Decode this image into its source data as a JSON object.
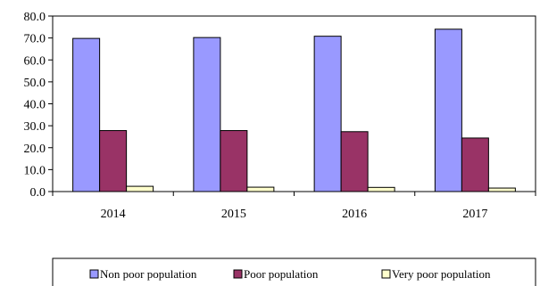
{
  "chart_data": {
    "type": "bar",
    "title": "",
    "xlabel": "",
    "ylabel": "",
    "categories": [
      "2014",
      "2015",
      "2016",
      "2017"
    ],
    "series": [
      {
        "name": "Non poor population",
        "values": [
          69.8,
          70.2,
          70.8,
          74.0
        ],
        "color": "#9999ff"
      },
      {
        "name": "Poor population",
        "values": [
          27.8,
          27.8,
          27.3,
          24.4
        ],
        "color": "#993366"
      },
      {
        "name": "Very poor population",
        "values": [
          2.4,
          2.0,
          1.9,
          1.6
        ],
        "color": "#ffffcc"
      }
    ],
    "ylim": [
      0,
      80
    ],
    "yticks": [
      "0.0",
      "10.0",
      "20.0",
      "30.0",
      "40.0",
      "50.0",
      "60.0",
      "70.0",
      "80.0"
    ],
    "grid": false,
    "legend_position": "bottom"
  }
}
